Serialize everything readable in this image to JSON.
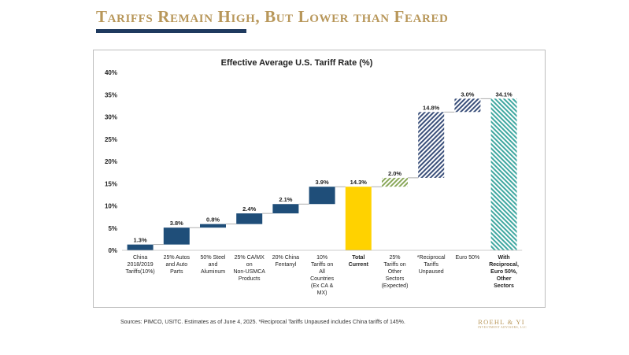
{
  "slide": {
    "title": "Tariffs Remain High, But Lower than Feared",
    "sources": "Sources: PIMCO, USITC. Estimates as of June 4, 2025. *Reciprocal Tariffs Unpaused includes China tariffs of 145%.",
    "logo_name": "ROEHL & YI",
    "logo_sub": "INVESTMENT ADVISORS, LLC"
  },
  "colors": {
    "title_gold": "#b8975a",
    "rule_navy": "#1f3a5f",
    "bar_navy": "#1f4e79",
    "bar_gold": "#ffd200",
    "hatch_green": "#8aa85a",
    "hatch_navy": "#3a4f7a",
    "hatch_teal": "#3fa7a0"
  },
  "chart_data": {
    "type": "bar",
    "subtype": "waterfall",
    "title": "Effective Average U.S. Tariff Rate (%)",
    "ylim": [
      0,
      40
    ],
    "yticks": [
      "0%",
      "5%",
      "10%",
      "15%",
      "20%",
      "25%",
      "30%",
      "35%",
      "40%"
    ],
    "grid": false,
    "legend": "none",
    "bars": [
      {
        "label": "China 2018/2019 Tariffs(10%)",
        "value": 1.3,
        "value_label": "1.3%",
        "kind": "increment",
        "style": "solid-navy",
        "bold": false
      },
      {
        "label": "25% Autos and Auto Parts",
        "value": 3.8,
        "value_label": "3.8%",
        "kind": "increment",
        "style": "solid-navy",
        "bold": false
      },
      {
        "label": "50% Steel and Aluminum",
        "value": 0.8,
        "value_label": "0.8%",
        "kind": "increment",
        "style": "solid-navy",
        "bold": false
      },
      {
        "label": "25% CA/MX on Non-USMCA Products",
        "value": 2.4,
        "value_label": "2.4%",
        "kind": "increment",
        "style": "solid-navy",
        "bold": false
      },
      {
        "label": "20% China Fentanyl",
        "value": 2.1,
        "value_label": "2.1%",
        "kind": "increment",
        "style": "solid-navy",
        "bold": false
      },
      {
        "label": "10% Tariffs on All Countries (Ex CA & MX)",
        "value": 3.9,
        "value_label": "3.9%",
        "kind": "increment",
        "style": "solid-navy",
        "bold": false
      },
      {
        "label": "Total Current",
        "value": 14.3,
        "value_label": "14.3%",
        "kind": "total",
        "style": "solid-gold",
        "bold": true
      },
      {
        "label": "25% Tariffs on Other Sectors (Expected)",
        "value": 2.0,
        "value_label": "2.0%",
        "kind": "increment",
        "style": "hatch-green",
        "bold": false
      },
      {
        "label": "*Reciprocal Tariffs Unpaused",
        "value": 14.8,
        "value_label": "14.8%",
        "kind": "increment",
        "style": "hatch-navy",
        "bold": false
      },
      {
        "label": "Euro 50%",
        "value": 3.0,
        "value_label": "3.0%",
        "kind": "increment",
        "style": "hatch-navy",
        "bold": false
      },
      {
        "label": "With Reciprocal, Euro 50%, Other Sectors",
        "value": 34.1,
        "value_label": "34.1%",
        "kind": "total",
        "style": "hatch-teal",
        "bold": true
      }
    ]
  }
}
